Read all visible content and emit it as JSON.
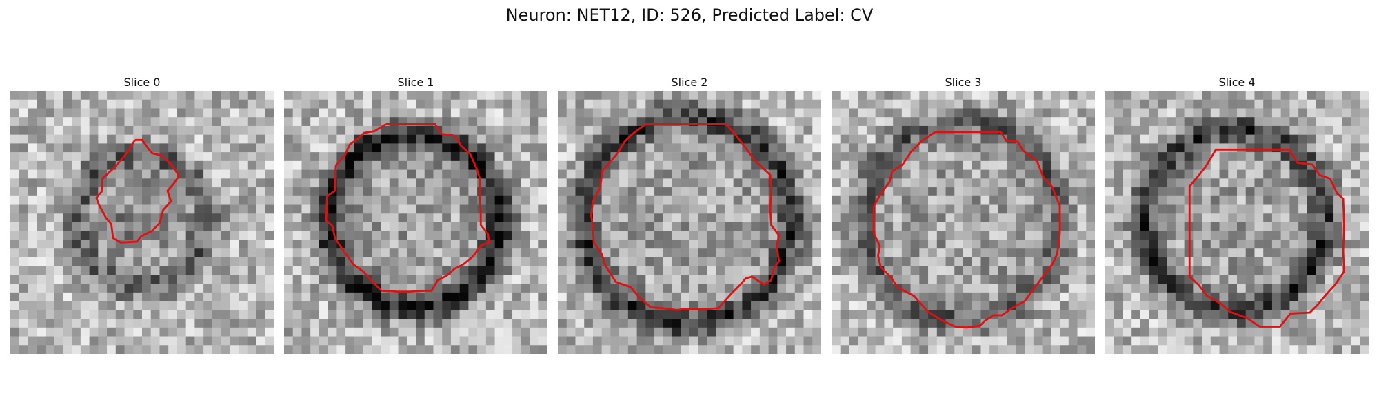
{
  "figure": {
    "title": "Neuron: NET12, ID: 526, Predicted Label: CV",
    "contour_color": "#e01010",
    "colormap": "grayscale"
  },
  "panels": [
    {
      "title": "Slice 0",
      "seed": 11,
      "ring_radius": 0.25,
      "ring_strength": 0.35,
      "center_dark": true
    },
    {
      "title": "Slice 1",
      "seed": 23,
      "ring_radius": 0.33,
      "ring_strength": 0.55,
      "center_dark": false
    },
    {
      "title": "Slice 2",
      "seed": 37,
      "ring_radius": 0.4,
      "ring_strength": 0.45,
      "center_dark": false
    },
    {
      "title": "Slice 3",
      "seed": 41,
      "ring_radius": 0.38,
      "ring_strength": 0.3,
      "center_dark": false
    },
    {
      "title": "Slice 4",
      "seed": 53,
      "ring_radius": 0.35,
      "ring_strength": 0.45,
      "center_dark": false
    }
  ]
}
